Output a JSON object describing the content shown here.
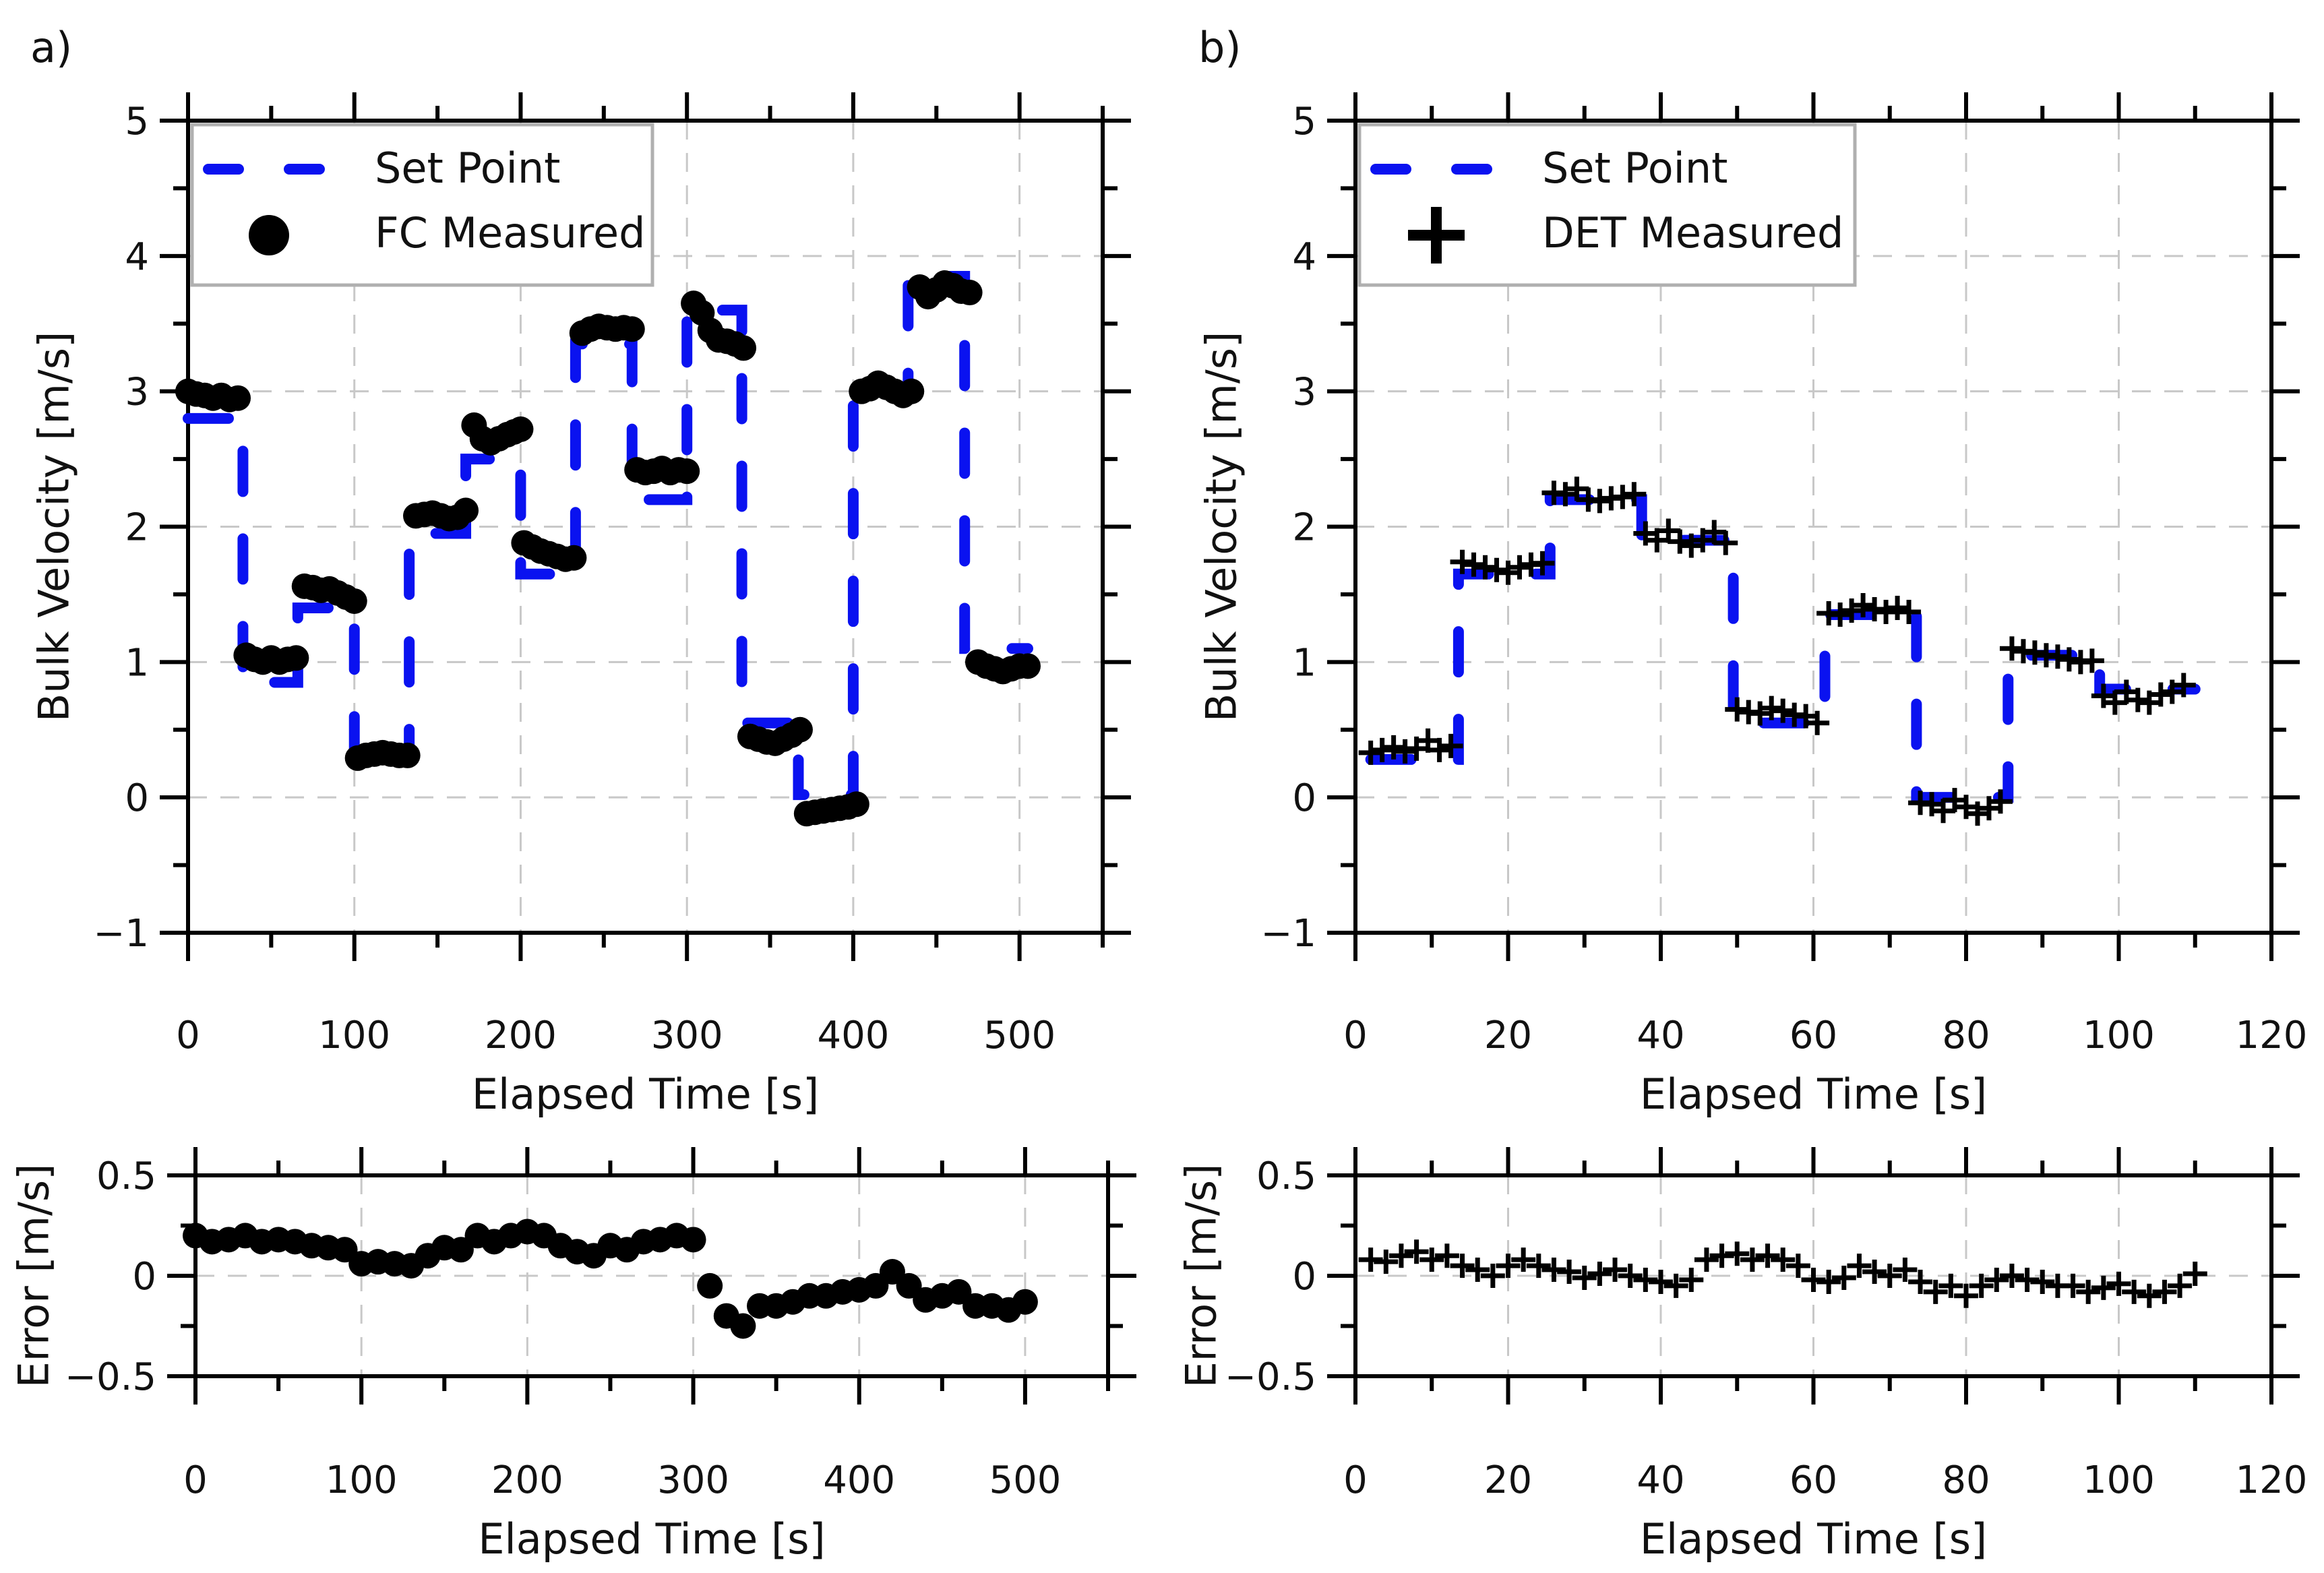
{
  "colors": {
    "setpoint": "#0a12f0",
    "measured": "#000000",
    "grid": "#c8c8c8",
    "legend_border": "#b0b0b0"
  },
  "chart_data": [
    {
      "id": "a-main",
      "panel_label": "a)",
      "type": "line+scatter",
      "xlabel": "Elapsed Time [s]",
      "ylabel": "Bulk Velocity [m/s]",
      "xlim": [
        0,
        550
      ],
      "ylim": [
        -1,
        5
      ],
      "xticks": [
        0,
        100,
        200,
        300,
        400,
        500
      ],
      "xticks_minor": [
        50,
        150,
        250,
        350,
        450,
        550
      ],
      "yticks": [
        -1,
        0,
        1,
        2,
        3,
        4,
        5
      ],
      "yticks_minor": [
        -0.5,
        0.5,
        1.5,
        2.5,
        3.5,
        4.5
      ],
      "ytick_labels": [
        "−1",
        "0",
        "1",
        "2",
        "3",
        "4",
        "5"
      ],
      "grid": true,
      "legend": {
        "placement": "top-left",
        "entries": [
          "Set Point",
          "FC Measured"
        ]
      },
      "setpoint": {
        "edges": [
          0,
          33,
          66,
          100,
          133,
          167,
          200,
          233,
          267,
          300,
          333,
          367,
          400,
          433,
          467,
          505
        ],
        "values": [
          2.8,
          0.85,
          1.4,
          0.28,
          1.95,
          2.5,
          1.65,
          3.35,
          2.2,
          3.6,
          0.55,
          0.02,
          3.0,
          3.85,
          1.1
        ]
      },
      "marker": "circle",
      "measured": [
        [
          0,
          3.0
        ],
        [
          5,
          2.98
        ],
        [
          10,
          2.97
        ],
        [
          15,
          2.95
        ],
        [
          20,
          2.97
        ],
        [
          25,
          2.94
        ],
        [
          30,
          2.95
        ],
        [
          35,
          1.05
        ],
        [
          40,
          1.02
        ],
        [
          45,
          1.0
        ],
        [
          50,
          1.03
        ],
        [
          55,
          1.0
        ],
        [
          60,
          1.02
        ],
        [
          65,
          1.03
        ],
        [
          70,
          1.56
        ],
        [
          75,
          1.55
        ],
        [
          80,
          1.53
        ],
        [
          85,
          1.54
        ],
        [
          90,
          1.51
        ],
        [
          95,
          1.48
        ],
        [
          100,
          1.45
        ],
        [
          102,
          0.29
        ],
        [
          107,
          0.31
        ],
        [
          112,
          0.32
        ],
        [
          117,
          0.33
        ],
        [
          122,
          0.32
        ],
        [
          127,
          0.31
        ],
        [
          132,
          0.31
        ],
        [
          137,
          2.08
        ],
        [
          142,
          2.09
        ],
        [
          147,
          2.1
        ],
        [
          152,
          2.08
        ],
        [
          157,
          2.06
        ],
        [
          162,
          2.07
        ],
        [
          167,
          2.12
        ],
        [
          172,
          2.75
        ],
        [
          177,
          2.65
        ],
        [
          182,
          2.62
        ],
        [
          187,
          2.65
        ],
        [
          192,
          2.68
        ],
        [
          196,
          2.7
        ],
        [
          200,
          2.72
        ],
        [
          202,
          1.88
        ],
        [
          207,
          1.85
        ],
        [
          212,
          1.82
        ],
        [
          217,
          1.8
        ],
        [
          222,
          1.78
        ],
        [
          227,
          1.76
        ],
        [
          232,
          1.77
        ],
        [
          237,
          3.43
        ],
        [
          242,
          3.46
        ],
        [
          247,
          3.48
        ],
        [
          252,
          3.47
        ],
        [
          257,
          3.46
        ],
        [
          262,
          3.47
        ],
        [
          267,
          3.46
        ],
        [
          270,
          2.42
        ],
        [
          275,
          2.4
        ],
        [
          280,
          2.41
        ],
        [
          285,
          2.43
        ],
        [
          290,
          2.4
        ],
        [
          295,
          2.42
        ],
        [
          300,
          2.41
        ],
        [
          304,
          3.65
        ],
        [
          309,
          3.58
        ],
        [
          314,
          3.45
        ],
        [
          319,
          3.38
        ],
        [
          324,
          3.37
        ],
        [
          329,
          3.35
        ],
        [
          334,
          3.32
        ],
        [
          338,
          0.45
        ],
        [
          343,
          0.43
        ],
        [
          348,
          0.41
        ],
        [
          353,
          0.4
        ],
        [
          358,
          0.43
        ],
        [
          363,
          0.46
        ],
        [
          368,
          0.5
        ],
        [
          372,
          -0.12
        ],
        [
          377,
          -0.11
        ],
        [
          382,
          -0.1
        ],
        [
          387,
          -0.09
        ],
        [
          392,
          -0.08
        ],
        [
          397,
          -0.07
        ],
        [
          402,
          -0.05
        ],
        [
          405,
          3.0
        ],
        [
          410,
          3.02
        ],
        [
          415,
          3.06
        ],
        [
          420,
          3.03
        ],
        [
          425,
          3.0
        ],
        [
          430,
          2.97
        ],
        [
          435,
          3.0
        ],
        [
          440,
          3.77
        ],
        [
          445,
          3.7
        ],
        [
          450,
          3.75
        ],
        [
          455,
          3.8
        ],
        [
          460,
          3.78
        ],
        [
          465,
          3.74
        ],
        [
          470,
          3.73
        ],
        [
          475,
          1.0
        ],
        [
          480,
          0.97
        ],
        [
          485,
          0.95
        ],
        [
          490,
          0.93
        ],
        [
          495,
          0.95
        ],
        [
          500,
          0.97
        ],
        [
          505,
          0.97
        ]
      ]
    },
    {
      "id": "b-main",
      "panel_label": "b)",
      "type": "line+scatter",
      "xlabel": "Elapsed Time [s]",
      "ylabel": "Bulk Velocity [m/s]",
      "xlim": [
        0,
        120
      ],
      "ylim": [
        -1,
        5
      ],
      "xticks": [
        0,
        20,
        40,
        60,
        80,
        100,
        120
      ],
      "xticks_minor": [
        10,
        30,
        50,
        70,
        90,
        110
      ],
      "yticks": [
        -1,
        0,
        1,
        2,
        3,
        4,
        5
      ],
      "yticks_minor": [
        -0.5,
        0.5,
        1.5,
        2.5,
        3.5,
        4.5
      ],
      "ytick_labels": [
        "−1",
        "0",
        "1",
        "2",
        "3",
        "4",
        "5"
      ],
      "grid": true,
      "legend": {
        "placement": "top-left",
        "entries": [
          "Set Point",
          "DET Measured"
        ]
      },
      "setpoint": {
        "edges": [
          2,
          13.5,
          25.5,
          37.5,
          49.5,
          61.5,
          73.5,
          85.5,
          97.5,
          110
        ],
        "values": [
          0.28,
          1.65,
          2.2,
          1.9,
          0.55,
          1.35,
          0.0,
          1.05,
          0.8
        ]
      },
      "marker": "plus",
      "measured": [
        [
          2,
          0.33
        ],
        [
          3.5,
          0.35
        ],
        [
          5,
          0.37
        ],
        [
          6.5,
          0.34
        ],
        [
          8,
          0.36
        ],
        [
          9.5,
          0.42
        ],
        [
          11,
          0.35
        ],
        [
          12.5,
          0.38
        ],
        [
          14,
          1.74
        ],
        [
          15.5,
          1.72
        ],
        [
          17,
          1.7
        ],
        [
          18.5,
          1.68
        ],
        [
          20,
          1.66
        ],
        [
          21.5,
          1.7
        ],
        [
          23,
          1.72
        ],
        [
          24.5,
          1.73
        ],
        [
          26,
          2.25
        ],
        [
          27.5,
          2.24
        ],
        [
          29,
          2.28
        ],
        [
          30.5,
          2.2
        ],
        [
          32,
          2.19
        ],
        [
          33.5,
          2.21
        ],
        [
          35,
          2.22
        ],
        [
          36.5,
          2.24
        ],
        [
          38,
          1.95
        ],
        [
          39.5,
          1.9
        ],
        [
          41,
          1.97
        ],
        [
          42.5,
          1.89
        ],
        [
          44,
          1.86
        ],
        [
          45.5,
          1.9
        ],
        [
          47,
          1.96
        ],
        [
          48.5,
          1.88
        ],
        [
          50,
          0.65
        ],
        [
          51.5,
          0.63
        ],
        [
          53,
          0.62
        ],
        [
          54.5,
          0.66
        ],
        [
          56,
          0.64
        ],
        [
          57.5,
          0.61
        ],
        [
          59,
          0.6
        ],
        [
          60.5,
          0.55
        ],
        [
          62,
          1.36
        ],
        [
          63.5,
          1.35
        ],
        [
          65,
          1.38
        ],
        [
          66.5,
          1.42
        ],
        [
          68,
          1.39
        ],
        [
          69.5,
          1.37
        ],
        [
          71,
          1.4
        ],
        [
          72.5,
          1.37
        ],
        [
          74,
          -0.04
        ],
        [
          75.5,
          -0.05
        ],
        [
          77,
          -0.1
        ],
        [
          78.5,
          -0.02
        ],
        [
          80,
          -0.07
        ],
        [
          81.5,
          -0.12
        ],
        [
          83,
          -0.08
        ],
        [
          84.5,
          -0.03
        ],
        [
          86,
          1.1
        ],
        [
          87.5,
          1.08
        ],
        [
          89,
          1.07
        ],
        [
          90.5,
          1.05
        ],
        [
          92,
          1.04
        ],
        [
          93.5,
          1.02
        ],
        [
          95,
          1.0
        ],
        [
          96.5,
          1.01
        ],
        [
          98,
          0.75
        ],
        [
          99.5,
          0.7
        ],
        [
          101,
          0.78
        ],
        [
          102.5,
          0.72
        ],
        [
          104,
          0.7
        ],
        [
          105.5,
          0.76
        ],
        [
          107,
          0.78
        ],
        [
          108.5,
          0.83
        ]
      ]
    },
    {
      "id": "a-error",
      "type": "scatter",
      "xlabel": "Elapsed Time [s]",
      "ylabel": "Error [m/s]",
      "xlim": [
        0,
        550
      ],
      "ylim": [
        -0.5,
        0.5
      ],
      "xticks": [
        0,
        100,
        200,
        300,
        400,
        500
      ],
      "xticks_minor": [
        50,
        150,
        250,
        350,
        450,
        550
      ],
      "yticks": [
        -0.5,
        0,
        0.5
      ],
      "yticks_minor": [
        -0.25,
        0.25
      ],
      "ytick_labels": [
        "−0.5",
        "0",
        "0.5"
      ],
      "grid": true,
      "marker": "circle",
      "x_start": 0,
      "x_step": 10,
      "values": [
        0.2,
        0.17,
        0.18,
        0.2,
        0.17,
        0.18,
        0.17,
        0.15,
        0.14,
        0.13,
        0.06,
        0.07,
        0.06,
        0.05,
        0.1,
        0.14,
        0.13,
        0.2,
        0.17,
        0.2,
        0.22,
        0.2,
        0.15,
        0.12,
        0.1,
        0.15,
        0.13,
        0.17,
        0.18,
        0.2,
        0.18,
        -0.05,
        -0.2,
        -0.25,
        -0.15,
        -0.15,
        -0.13,
        -0.1,
        -0.1,
        -0.08,
        -0.07,
        -0.05,
        0.02,
        -0.05,
        -0.12,
        -0.1,
        -0.08,
        -0.15,
        -0.15,
        -0.17,
        -0.13
      ]
    },
    {
      "id": "b-error",
      "type": "scatter",
      "xlabel": "Elapsed Time [s]",
      "ylabel": "Error [m/s]",
      "xlim": [
        0,
        120
      ],
      "ylim": [
        -0.5,
        0.5
      ],
      "xticks": [
        0,
        20,
        40,
        60,
        80,
        100,
        120
      ],
      "xticks_minor": [
        10,
        30,
        50,
        70,
        90,
        110
      ],
      "yticks": [
        -0.5,
        0,
        0.5
      ],
      "yticks_minor": [
        -0.25,
        0.25
      ],
      "ytick_labels": [
        "−0.5",
        "0",
        "0.5"
      ],
      "grid": true,
      "marker": "plus",
      "x_start": 2,
      "x_step": 2,
      "values": [
        0.08,
        0.07,
        0.1,
        0.12,
        0.08,
        0.1,
        0.05,
        0.03,
        0.0,
        0.05,
        0.08,
        0.05,
        0.03,
        0.02,
        -0.01,
        0.01,
        0.03,
        0.0,
        -0.02,
        -0.03,
        -0.05,
        -0.02,
        0.08,
        0.1,
        0.11,
        0.08,
        0.1,
        0.08,
        0.05,
        -0.02,
        -0.03,
        -0.01,
        0.05,
        0.02,
        0.0,
        0.03,
        -0.03,
        -0.08,
        -0.05,
        -0.1,
        -0.05,
        -0.02,
        0.0,
        -0.02,
        -0.03,
        -0.05,
        -0.05,
        -0.08,
        -0.06,
        -0.04,
        -0.08,
        -0.1,
        -0.08,
        -0.05,
        0.01
      ]
    }
  ]
}
